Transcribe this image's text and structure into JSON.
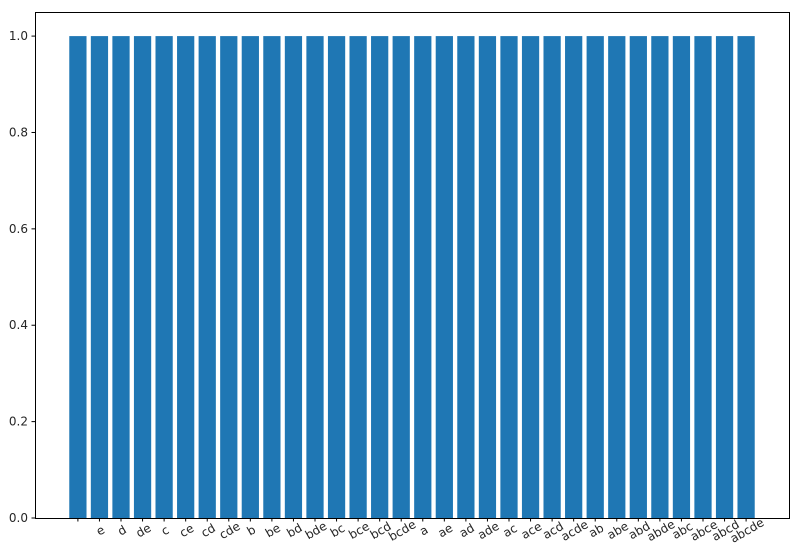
{
  "chart_data": {
    "type": "bar",
    "title": "",
    "xlabel": "",
    "ylabel": "",
    "categories": [
      "",
      "e",
      "d",
      "de",
      "c",
      "ce",
      "cd",
      "cde",
      "b",
      "be",
      "bd",
      "bde",
      "bc",
      "bce",
      "bcd",
      "bcde",
      "a",
      "ae",
      "ad",
      "ade",
      "ac",
      "ace",
      "acd",
      "acde",
      "ab",
      "abe",
      "abd",
      "abde",
      "abc",
      "abce",
      "abcd",
      "abcde"
    ],
    "values": [
      1.0,
      1.0,
      1.0,
      1.0,
      1.0,
      1.0,
      1.0,
      1.0,
      1.0,
      1.0,
      1.0,
      1.0,
      1.0,
      1.0,
      1.0,
      1.0,
      1.0,
      1.0,
      1.0,
      1.0,
      1.0,
      1.0,
      1.0,
      1.0,
      1.0,
      1.0,
      1.0,
      1.0,
      1.0,
      1.0,
      1.0,
      1.0
    ],
    "ylim": [
      0,
      1.05
    ],
    "yticks": [
      "0.0",
      "0.2",
      "0.4",
      "0.6",
      "0.8",
      "1.0"
    ],
    "grid": false,
    "bar_color": "#1f77b4",
    "x_tick_rotation_deg": 30
  }
}
